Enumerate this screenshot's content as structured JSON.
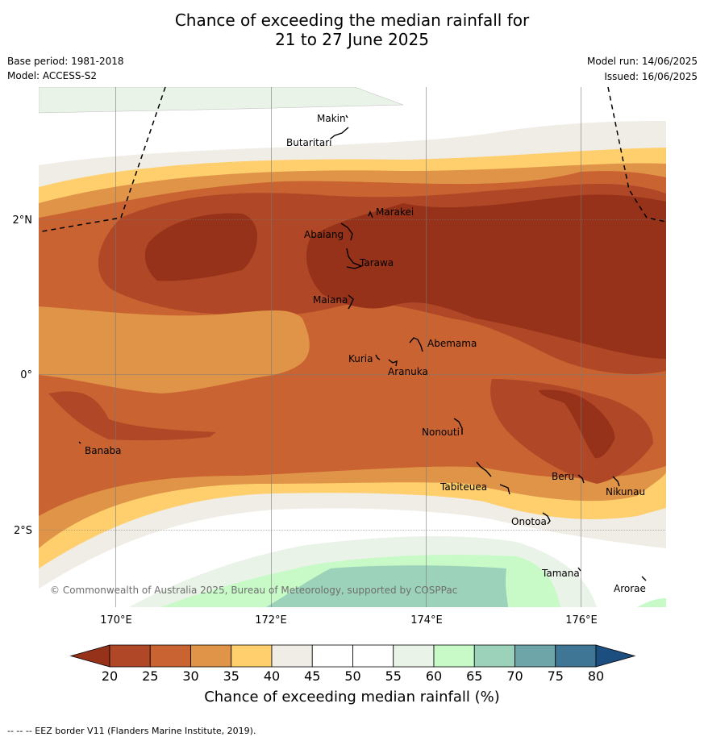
{
  "title": {
    "line1": "Chance of exceeding the median rainfall for",
    "line2": "21 to 27 June 2025"
  },
  "meta": {
    "base_period": "Base period: 1981-2018",
    "model": "Model: ACCESS-S2",
    "model_run": "Model run: 14/06/2025",
    "issued": "Issued: 16/06/2025"
  },
  "map": {
    "lon_labels": [
      "170°E",
      "172°E",
      "174°E",
      "176°E"
    ],
    "lat_labels": [
      "2°N",
      "0°",
      "2°S"
    ],
    "copyright": "© Commonwealth of Australia 2025, Bureau of Meteorology, supported by COSPPac",
    "places": [
      "Makin",
      "Butaritari",
      "Marakei",
      "Abaiang",
      "Tarawa",
      "Maiana",
      "Abemama",
      "Kuria",
      "Aranuka",
      "Nonouti",
      "Banaba",
      "Tabiteuea",
      "Beru",
      "Nikunau",
      "Onotoa",
      "Tamana",
      "Arorae"
    ]
  },
  "colorbar": {
    "ticks": [
      "20",
      "25",
      "30",
      "35",
      "40",
      "45",
      "50",
      "55",
      "60",
      "65",
      "70",
      "75",
      "80"
    ],
    "colors": [
      "#953219",
      "#b04726",
      "#c96432",
      "#e09448",
      "#fecf6c",
      "#f0ece6",
      "#ffffff",
      "#ffffff",
      "#e9f3e7",
      "#c8fac8",
      "#9bd2b9",
      "#6ea5a9",
      "#3f7696",
      "#1c4e80"
    ],
    "label": "Chance of exceeding median rainfall (%)"
  },
  "footer": "--  --  -- EEZ border V11 (Flanders Marine Institute, 2019)."
}
